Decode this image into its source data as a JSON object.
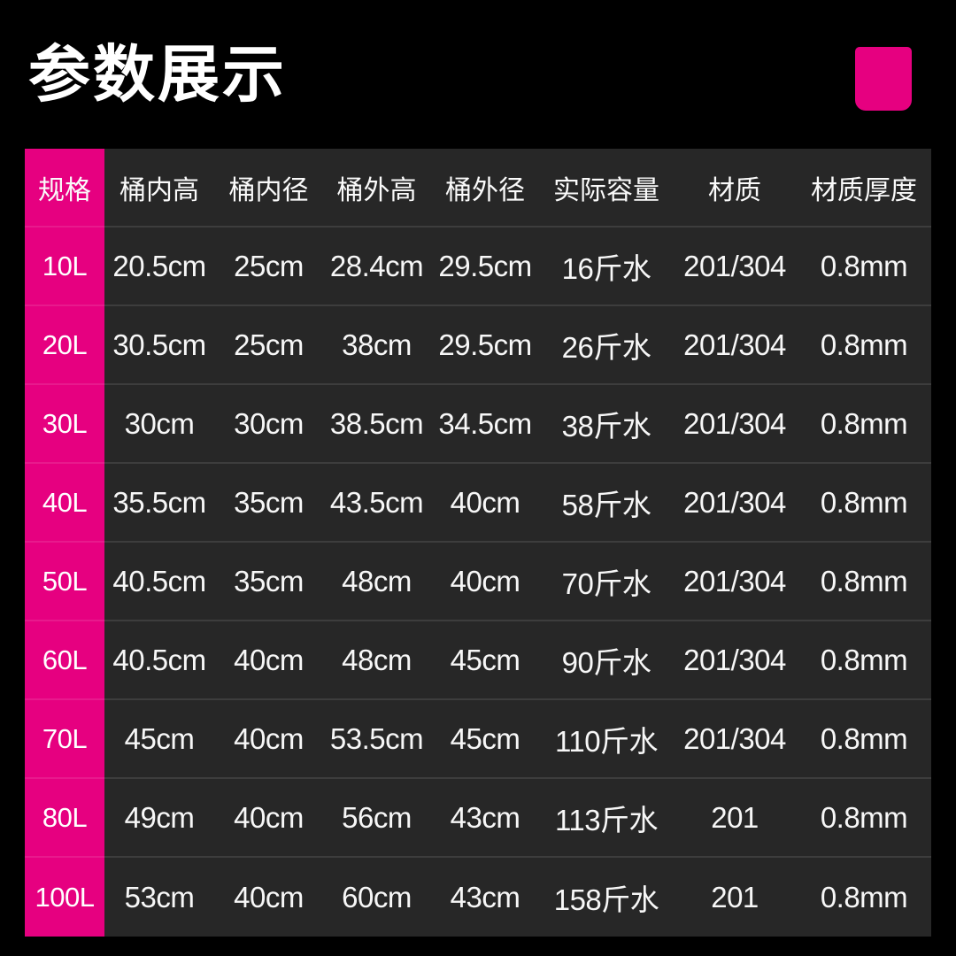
{
  "page": {
    "title": "参数展示",
    "accent_color": "#e60080",
    "background_color": "#000000",
    "table_background": "#272727",
    "text_color": "#ffffff"
  },
  "chart_data": {
    "type": "table",
    "title": "参数展示",
    "columns": [
      "规格",
      "桶内高",
      "桶内径",
      "桶外高",
      "桶外径",
      "实际容量",
      "材质",
      "材质厚度"
    ],
    "rows": [
      [
        "10L",
        "20.5cm",
        "25cm",
        "28.4cm",
        "29.5cm",
        "16斤水",
        "201/304",
        "0.8mm"
      ],
      [
        "20L",
        "30.5cm",
        "25cm",
        "38cm",
        "29.5cm",
        "26斤水",
        "201/304",
        "0.8mm"
      ],
      [
        "30L",
        "30cm",
        "30cm",
        "38.5cm",
        "34.5cm",
        "38斤水",
        "201/304",
        "0.8mm"
      ],
      [
        "40L",
        "35.5cm",
        "35cm",
        "43.5cm",
        "40cm",
        "58斤水",
        "201/304",
        "0.8mm"
      ],
      [
        "50L",
        "40.5cm",
        "35cm",
        "48cm",
        "40cm",
        "70斤水",
        "201/304",
        "0.8mm"
      ],
      [
        "60L",
        "40.5cm",
        "40cm",
        "48cm",
        "45cm",
        "90斤水",
        "201/304",
        "0.8mm"
      ],
      [
        "70L",
        "45cm",
        "40cm",
        "53.5cm",
        "45cm",
        "110斤水",
        "201/304",
        "0.8mm"
      ],
      [
        "80L",
        "49cm",
        "40cm",
        "56cm",
        "43cm",
        "113斤水",
        "201",
        "0.8mm"
      ],
      [
        "100L",
        "53cm",
        "40cm",
        "60cm",
        "43cm",
        "158斤水",
        "201",
        "0.8mm"
      ]
    ]
  }
}
